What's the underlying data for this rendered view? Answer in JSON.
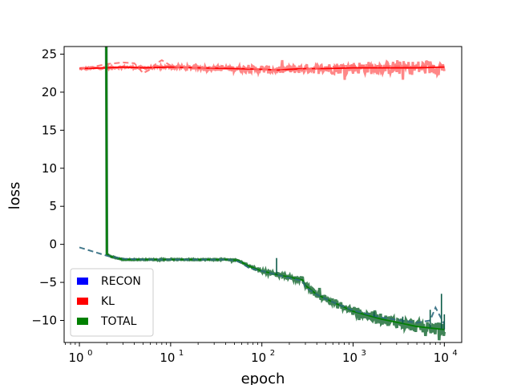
{
  "chart_data": {
    "type": "line",
    "title": "",
    "xlabel": "epoch",
    "ylabel": "loss",
    "xscale": "log",
    "xlim": [
      0.68,
      15500
    ],
    "ylim": [
      -12.9,
      26
    ],
    "grid": false,
    "legend_position": "lower-left",
    "x_ticks": [
      {
        "value": 1,
        "label": "10",
        "exp": "0"
      },
      {
        "value": 10,
        "label": "10",
        "exp": "1"
      },
      {
        "value": 100,
        "label": "10",
        "exp": "2"
      },
      {
        "value": 1000,
        "label": "10",
        "exp": "3"
      },
      {
        "value": 10000,
        "label": "10",
        "exp": "4"
      }
    ],
    "y_ticks": [
      {
        "value": -10,
        "label": "−10"
      },
      {
        "value": -5,
        "label": "−5"
      },
      {
        "value": 0,
        "label": "0"
      },
      {
        "value": 5,
        "label": "5"
      },
      {
        "value": 10,
        "label": "10"
      },
      {
        "value": 15,
        "label": "15"
      },
      {
        "value": 20,
        "label": "20"
      },
      {
        "value": 25,
        "label": "25"
      }
    ],
    "legend": [
      {
        "label": "RECON",
        "color": "#0000ff"
      },
      {
        "label": "KL",
        "color": "#ff0000"
      },
      {
        "label": "TOTAL",
        "color": "#008000"
      }
    ],
    "series": [
      {
        "name": "KL",
        "color": "#ff0000",
        "mean": {
          "x": [
            1,
            2,
            3,
            5,
            10,
            20,
            50,
            100,
            150,
            200,
            300,
            500,
            1000,
            2000,
            5000,
            10000
          ],
          "y": [
            23.1,
            23.2,
            23.3,
            23.2,
            23.3,
            23.2,
            23.1,
            23.0,
            22.9,
            23.0,
            23.1,
            23.1,
            23.2,
            23.2,
            23.2,
            23.3
          ]
        },
        "band": {
          "x": [
            1,
            10,
            100,
            300,
            1000,
            3000,
            10000
          ],
          "half_width": [
            0.1,
            0.2,
            0.5,
            0.6,
            0.8,
            0.9,
            1.0
          ]
        },
        "val": {
          "x": [
            1,
            1.5,
            2,
            3,
            4,
            5,
            6,
            7,
            8,
            10,
            12,
            20,
            50,
            100,
            200,
            500,
            1000,
            5000,
            10000
          ],
          "y": [
            23.0,
            23.4,
            23.7,
            23.9,
            23.8,
            22.5,
            23.0,
            23.8,
            24.2,
            23.5,
            23.3,
            23.2,
            23.3,
            23.0,
            22.8,
            23.3,
            23.5,
            23.4,
            23.5
          ]
        }
      },
      {
        "name": "TOTAL",
        "color": "#008000",
        "dark": "#0b5b48",
        "mean": {
          "x": [
            1.97,
            2,
            2.2,
            3,
            5,
            10,
            20,
            40,
            55,
            70,
            90,
            100,
            150,
            200,
            280,
            300,
            400,
            600,
            1000,
            2000,
            5000,
            10000
          ],
          "y": [
            26,
            -1.3,
            -1.6,
            -2.0,
            -2.0,
            -2.0,
            -2.0,
            -2.0,
            -2.1,
            -2.8,
            -3.3,
            -3.5,
            -4.0,
            -4.3,
            -4.7,
            -5.4,
            -6.6,
            -7.6,
            -8.8,
            -9.8,
            -10.8,
            -11.2
          ]
        },
        "band": {
          "x": [
            1.97,
            10,
            50,
            100,
            200,
            300,
            500,
            1000,
            3000,
            10000
          ],
          "half_width": [
            0.05,
            0.05,
            0.08,
            0.15,
            0.25,
            0.35,
            0.5,
            0.6,
            0.75,
            0.85
          ]
        },
        "val": {
          "x": [
            1,
            2,
            3,
            5,
            10,
            20,
            30,
            40,
            50,
            60,
            70,
            90,
            100,
            200,
            280,
            300,
            400,
            600,
            1000,
            2000,
            5000,
            7000,
            8000,
            10000
          ],
          "y": [
            -0.4,
            -1.5,
            -1.9,
            -2.0,
            -2.0,
            -2.0,
            -2.0,
            -2.0,
            -2.1,
            -2.4,
            -3.0,
            -3.4,
            -3.5,
            -4.4,
            -4.8,
            -5.6,
            -6.6,
            -7.6,
            -8.7,
            -9.6,
            -10.3,
            -10.0,
            -8.3,
            -10.5
          ]
        },
        "spikes": [
          {
            "x": 145,
            "y": -1.8
          },
          {
            "x": 1300,
            "y": -9.2
          },
          {
            "x": 1700,
            "y": -8.9
          },
          {
            "x": 3500,
            "y": -9.5
          },
          {
            "x": 7000,
            "y": -8.6
          },
          {
            "x": 9300,
            "y": -6.5
          },
          {
            "x": 10000,
            "y": -9.2
          }
        ]
      }
    ]
  }
}
